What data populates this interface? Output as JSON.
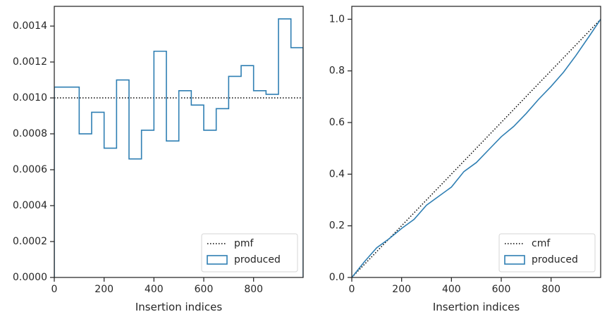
{
  "chart_data": [
    {
      "type": "histogram-step",
      "xlabel": "Insertion indices",
      "ylabel": "",
      "xlim": [
        0,
        999
      ],
      "ylim": [
        0,
        0.00151
      ],
      "xticks": [
        0,
        200,
        400,
        600,
        800
      ],
      "yticks": [
        0.0,
        0.0002,
        0.0004,
        0.0006,
        0.0008,
        0.001,
        0.0012,
        0.0014
      ],
      "ytick_labels": [
        "0.0000",
        "0.0002",
        "0.0004",
        "0.0006",
        "0.0008",
        "0.0010",
        "0.0012",
        "0.0014"
      ],
      "legend_position": "lower-right",
      "series": [
        {
          "name": "pmf",
          "kind": "line",
          "style": "dotted",
          "color": "#000000",
          "x": [
            0,
            999
          ],
          "values": [
            0.001,
            0.001
          ]
        },
        {
          "name": "produced",
          "kind": "step",
          "color": "#2f7fb3",
          "bin_edges": [
            0,
            100,
            150,
            200,
            250,
            300,
            350,
            400,
            450,
            500,
            550,
            600,
            650,
            700,
            750,
            800,
            850,
            900,
            950,
            999
          ],
          "values": [
            0.00106,
            0.0008,
            0.00092,
            0.00072,
            0.0011,
            0.00066,
            0.00082,
            0.00126,
            0.00076,
            0.00104,
            0.00096,
            0.00082,
            0.00094,
            0.00112,
            0.00118,
            0.00104,
            0.00102,
            0.00144,
            0.00128
          ]
        }
      ]
    },
    {
      "type": "line",
      "xlabel": "Insertion indices",
      "ylabel": "",
      "xlim": [
        0,
        999
      ],
      "ylim": [
        0,
        1.05
      ],
      "xticks": [
        0,
        200,
        400,
        600,
        800
      ],
      "yticks": [
        0.0,
        0.2,
        0.4,
        0.6,
        0.8,
        1.0
      ],
      "ytick_labels": [
        "0.0",
        "0.2",
        "0.4",
        "0.6",
        "0.8",
        "1.0"
      ],
      "legend_position": "lower-right",
      "series": [
        {
          "name": "cmf",
          "kind": "line",
          "style": "dotted",
          "color": "#000000",
          "x": [
            0,
            999
          ],
          "values": [
            0.0,
            1.0
          ]
        },
        {
          "name": "produced",
          "kind": "line",
          "color": "#2f7fb3",
          "x": [
            0,
            50,
            100,
            150,
            200,
            250,
            300,
            350,
            400,
            450,
            500,
            550,
            600,
            650,
            700,
            750,
            800,
            850,
            900,
            950,
            999
          ],
          "values": [
            0.0,
            0.06,
            0.115,
            0.15,
            0.19,
            0.225,
            0.28,
            0.315,
            0.35,
            0.41,
            0.445,
            0.495,
            0.545,
            0.585,
            0.635,
            0.69,
            0.74,
            0.795,
            0.86,
            0.93,
            1.0
          ]
        }
      ]
    }
  ]
}
